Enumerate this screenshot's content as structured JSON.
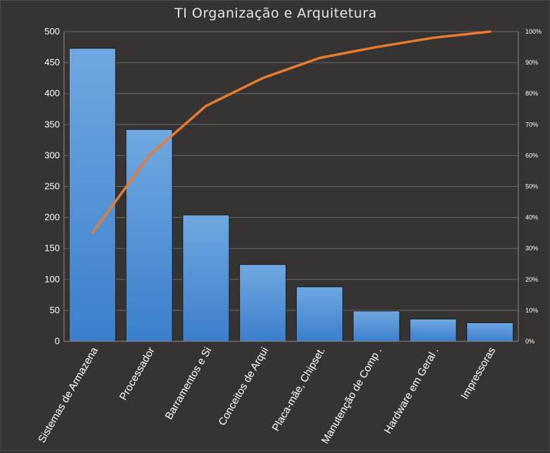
{
  "chart_data": {
    "type": "bar",
    "title": "TI Organização e Arquitetura",
    "categories": [
      "Sistemas de Armazena",
      "Processador",
      "Barramentos e Si",
      "Conceitos de Arqui",
      "Placa-mãe, Chipset.",
      "Manutenção de Comp .",
      "Hardware em Geral .",
      "Impressoras"
    ],
    "series": [
      {
        "type": "bar",
        "values": [
          473,
          342,
          204,
          124,
          88,
          49,
          36,
          30
        ]
      },
      {
        "type": "line",
        "axis": "secondary",
        "values": [
          35,
          60,
          76,
          85,
          91.5,
          95,
          98,
          100
        ]
      }
    ],
    "y_ticks": [
      0,
      50,
      100,
      150,
      200,
      250,
      300,
      350,
      400,
      450,
      500
    ],
    "ylim": [
      0,
      500
    ],
    "y2_ticks": [
      "0%",
      "10%",
      "20%",
      "30%",
      "40%",
      "50%",
      "60%",
      "70%",
      "80%",
      "90%",
      "100%"
    ],
    "y2lim": [
      0,
      100
    ],
    "xlabel": "",
    "ylabel": "",
    "grid": "horizontal",
    "legend": "none",
    "colors": {
      "background": "#363432",
      "bar_top": "#6fa8e0",
      "bar_bottom": "#3b7fcc",
      "line": "#e87b2e",
      "grid": "#6a6a6a",
      "text": "#ffffff"
    }
  }
}
